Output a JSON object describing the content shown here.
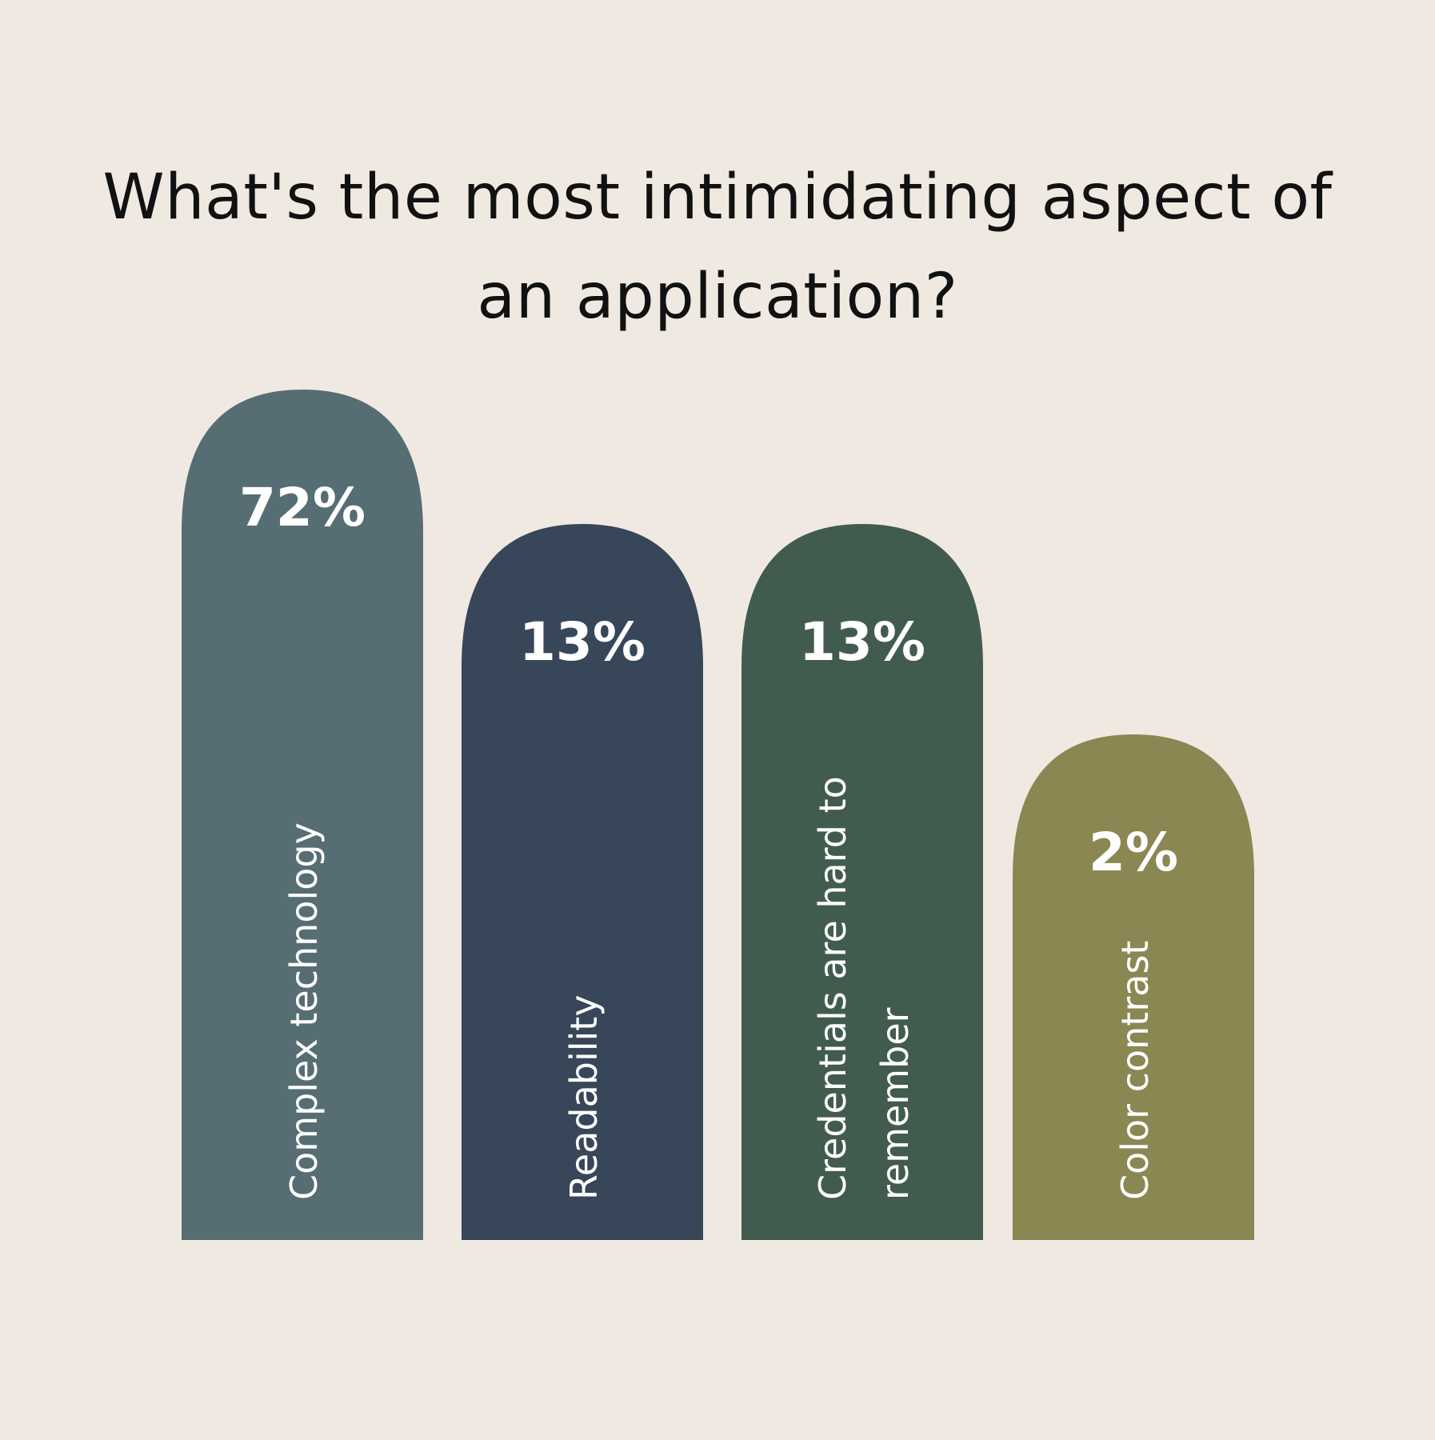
{
  "chart_data": {
    "type": "bar",
    "title_lines": [
      "What's the most intimidating aspect of",
      "an application?"
    ],
    "categories": [
      [
        "Complex technology"
      ],
      [
        "Readability"
      ],
      [
        "Credentials are hard to",
        "remember"
      ],
      [
        "Color contrast"
      ]
    ],
    "values": [
      72,
      13,
      13,
      2
    ],
    "value_labels": [
      "72%",
      "13%",
      "13%",
      "2%"
    ],
    "bar_colors": [
      "#566d73",
      "#374659",
      "#425b4f",
      "#8a8753"
    ],
    "background_color": "#f0e9e2",
    "value_text_color": "#ffffff",
    "grid": false,
    "legend": "none"
  }
}
